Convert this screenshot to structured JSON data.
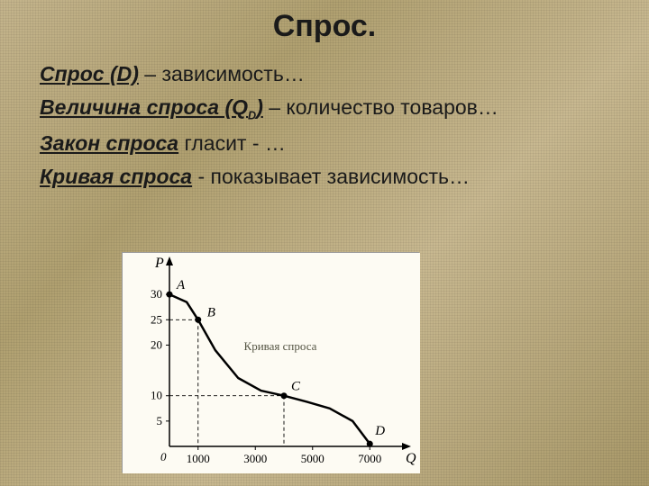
{
  "title": "Спрос.",
  "defs": {
    "d1_term": "Спрос (D)",
    "d1_rest": " – зависимость…",
    "d2_term_pre": "Величина спроса (Q",
    "d2_term_sub": "D",
    "d2_term_post": ")",
    "d2_rest": " – количество товаров…",
    "d3_term": "Закон спроса",
    "d3_rest": " гласит - …",
    "d4_term": "Кривая спроса",
    "d4_rest": "  - показывает зависимость…"
  },
  "chart": {
    "type": "line",
    "bg": "#fdfbf3",
    "axis_color": "#000000",
    "curve_color": "#000000",
    "dash_color": "#000000",
    "tick_font": 13,
    "point_label_font": 15,
    "caption": "Кривая спроса",
    "caption_font": 13,
    "caption_color": "#555544",
    "x_axis_label": "Q",
    "y_axis_label": "P",
    "origin_label": "0",
    "x_ticks": [
      1000,
      3000,
      5000,
      7000
    ],
    "y_ticks": [
      5,
      10,
      20,
      25,
      30
    ],
    "xlim": [
      0,
      8000
    ],
    "ylim": [
      0,
      35
    ],
    "curve_points": [
      {
        "x": 0,
        "y": 30
      },
      {
        "x": 600,
        "y": 28.5
      },
      {
        "x": 1000,
        "y": 25
      },
      {
        "x": 1600,
        "y": 19
      },
      {
        "x": 2400,
        "y": 13.5
      },
      {
        "x": 3200,
        "y": 11
      },
      {
        "x": 4000,
        "y": 10
      },
      {
        "x": 4800,
        "y": 8.8
      },
      {
        "x": 5600,
        "y": 7.5
      },
      {
        "x": 6400,
        "y": 5
      },
      {
        "x": 7000,
        "y": 0.5
      }
    ],
    "marked_points": [
      {
        "label": "A",
        "x": 0,
        "y": 30,
        "lx": 8,
        "ly": -6
      },
      {
        "label": "B",
        "x": 1000,
        "y": 25,
        "lx": 10,
        "ly": -4
      },
      {
        "label": "C",
        "x": 4000,
        "y": 10,
        "lx": 8,
        "ly": -6
      },
      {
        "label": "D",
        "x": 7000,
        "y": 0.5,
        "lx": 6,
        "ly": -10
      }
    ],
    "dash_lines": [
      {
        "from": "y",
        "x": 1000,
        "y": 25
      },
      {
        "from": "y",
        "x": 4000,
        "y": 10
      }
    ]
  }
}
